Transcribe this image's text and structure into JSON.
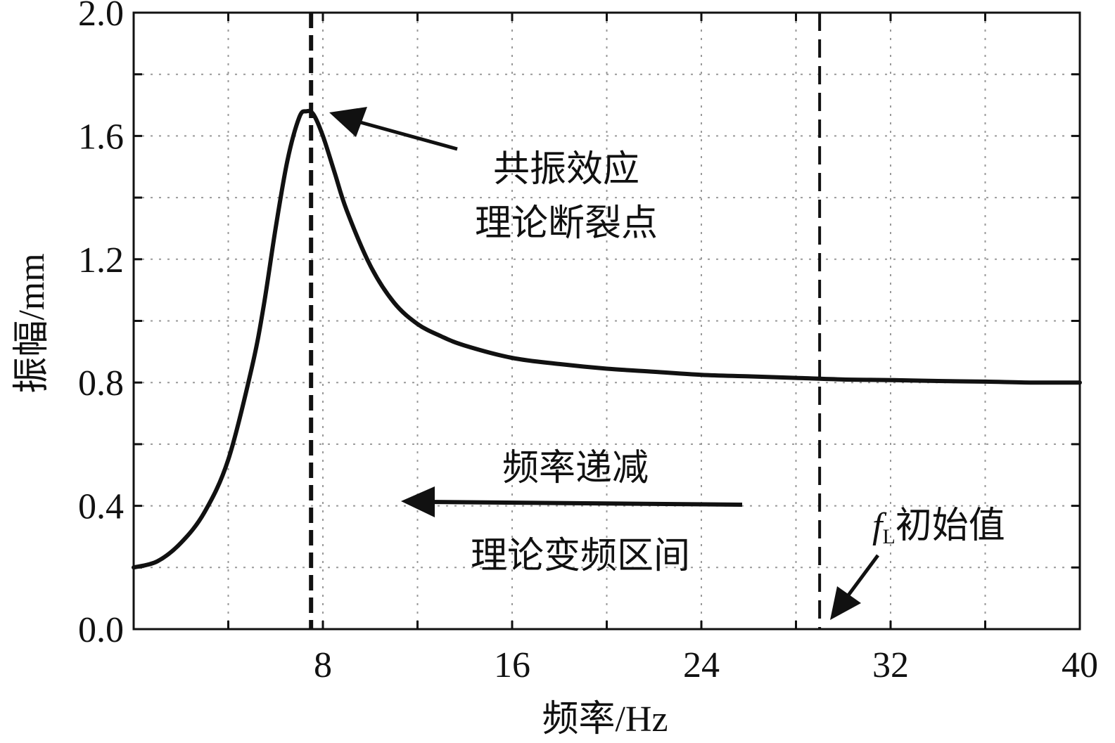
{
  "chart_data": {
    "type": "line",
    "xlabel": "频率/Hz",
    "ylabel": "振幅/mm",
    "xlim": [
      0,
      40
    ],
    "ylim": [
      0,
      2.0
    ],
    "x_ticks": [
      8,
      16,
      24,
      32,
      40
    ],
    "x_tick_labels": [
      "8",
      "16",
      "24",
      "32",
      "40"
    ],
    "y_ticks": [
      0.0,
      0.4,
      0.8,
      1.2,
      1.6,
      2.0
    ],
    "y_tick_labels": [
      "0.0",
      "0.4",
      "0.8",
      "1.2",
      "1.6",
      "2.0"
    ],
    "grid": true,
    "series": [
      {
        "x": [
          0,
          1,
          2,
          3,
          4,
          5,
          5.5,
          6,
          6.5,
          7,
          7.3,
          7.6,
          8,
          8.5,
          9,
          10,
          11,
          12,
          13,
          14,
          16,
          18,
          20,
          22,
          24,
          26,
          28,
          30,
          32,
          34,
          36,
          38,
          40
        ],
        "values": [
          0.2,
          0.22,
          0.28,
          0.38,
          0.55,
          0.85,
          1.05,
          1.3,
          1.52,
          1.66,
          1.68,
          1.67,
          1.6,
          1.48,
          1.36,
          1.18,
          1.06,
          0.99,
          0.95,
          0.92,
          0.88,
          0.86,
          0.845,
          0.835,
          0.825,
          0.82,
          0.815,
          0.81,
          0.808,
          0.805,
          0.803,
          0.8,
          0.8
        ]
      }
    ],
    "vlines": [
      7.5,
      29.0
    ],
    "annotations": {
      "resonance_line1": "共振效应",
      "resonance_line2": "理论断裂点",
      "decrease": "频率递减",
      "range": "理论变频区间",
      "fl_symbol": "f",
      "fl_subscript": "L",
      "fl_text": "初始值"
    }
  }
}
